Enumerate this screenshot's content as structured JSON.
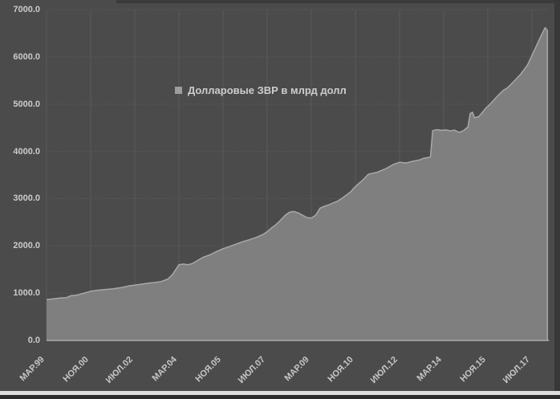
{
  "colors": {
    "background": "#4b4b4b",
    "area_fill": "#7f7f7f",
    "area_edge": "#a8a8a8",
    "gridline_h": "#5f5f5f",
    "gridline_v": "#595959",
    "axis_baseline": "#9b9b9b",
    "tick_text": "#cbcbcb",
    "legend_marker": "#9d9d9d",
    "scan_border": "#383838"
  },
  "chart_data": {
    "type": "area",
    "title": "",
    "xlabel": "",
    "ylabel": "",
    "legend_label": "Долларовые ЗВР в млрд долл",
    "legend_position": "upper-center",
    "grid": true,
    "ylim": [
      0,
      7000
    ],
    "y_tick_interval": 1000,
    "x_unit": "months since Mar-1999",
    "y_ticks": [
      {
        "v": 0,
        "label": "0.0"
      },
      {
        "v": 1000,
        "label": "1000.0"
      },
      {
        "v": 2000,
        "label": "2000.0"
      },
      {
        "v": 3000,
        "label": "3000.0"
      },
      {
        "v": 4000,
        "label": "4000.0"
      },
      {
        "v": 5000,
        "label": "5000.0"
      },
      {
        "v": 6000,
        "label": "6000.0"
      },
      {
        "v": 7000,
        "label": "7000.0"
      }
    ],
    "x_ticks": [
      {
        "m": 0,
        "label": "МАР.99"
      },
      {
        "m": 20,
        "label": "НОЯ.00"
      },
      {
        "m": 40,
        "label": "ИЮЛ.02"
      },
      {
        "m": 60,
        "label": "МАР.04"
      },
      {
        "m": 80,
        "label": "НОЯ.05"
      },
      {
        "m": 100,
        "label": "ИЮЛ.07"
      },
      {
        "m": 120,
        "label": "МАР.09"
      },
      {
        "m": 140,
        "label": "НОЯ.10"
      },
      {
        "m": 160,
        "label": "ИЮЛ.12"
      },
      {
        "m": 180,
        "label": "МАР.14"
      },
      {
        "m": 200,
        "label": "НОЯ.15"
      },
      {
        "m": 220,
        "label": "ИЮЛ.17"
      }
    ],
    "series": [
      {
        "name": "Долларовые ЗВР в млрд долл",
        "points": [
          [
            0,
            865
          ],
          [
            3,
            880
          ],
          [
            6,
            895
          ],
          [
            9,
            905
          ],
          [
            11,
            945
          ],
          [
            14,
            960
          ],
          [
            17,
            1000
          ],
          [
            20,
            1040
          ],
          [
            23,
            1060
          ],
          [
            26,
            1075
          ],
          [
            30,
            1090
          ],
          [
            34,
            1120
          ],
          [
            37,
            1150
          ],
          [
            40,
            1170
          ],
          [
            43,
            1190
          ],
          [
            46,
            1210
          ],
          [
            49,
            1225
          ],
          [
            52,
            1245
          ],
          [
            55,
            1300
          ],
          [
            57,
            1390
          ],
          [
            59,
            1530
          ],
          [
            60,
            1600
          ],
          [
            62,
            1615
          ],
          [
            64,
            1600
          ],
          [
            66,
            1625
          ],
          [
            68,
            1680
          ],
          [
            71,
            1760
          ],
          [
            74,
            1810
          ],
          [
            77,
            1880
          ],
          [
            80,
            1940
          ],
          [
            83,
            1990
          ],
          [
            86,
            2040
          ],
          [
            89,
            2090
          ],
          [
            92,
            2130
          ],
          [
            95,
            2180
          ],
          [
            98,
            2240
          ],
          [
            100,
            2300
          ],
          [
            102,
            2380
          ],
          [
            104,
            2450
          ],
          [
            106,
            2540
          ],
          [
            108,
            2640
          ],
          [
            110,
            2710
          ],
          [
            112,
            2730
          ],
          [
            114,
            2700
          ],
          [
            116,
            2650
          ],
          [
            118,
            2600
          ],
          [
            120,
            2590
          ],
          [
            122,
            2650
          ],
          [
            124,
            2800
          ],
          [
            126,
            2840
          ],
          [
            128,
            2870
          ],
          [
            130,
            2910
          ],
          [
            132,
            2950
          ],
          [
            134,
            3010
          ],
          [
            136,
            3080
          ],
          [
            138,
            3150
          ],
          [
            139,
            3210
          ],
          [
            141,
            3300
          ],
          [
            143,
            3380
          ],
          [
            146,
            3520
          ],
          [
            150,
            3560
          ],
          [
            154,
            3640
          ],
          [
            157,
            3720
          ],
          [
            160,
            3770
          ],
          [
            163,
            3755
          ],
          [
            166,
            3790
          ],
          [
            169,
            3820
          ],
          [
            171,
            3855
          ],
          [
            174,
            3880
          ],
          [
            175,
            4440
          ],
          [
            177,
            4460
          ],
          [
            179,
            4445
          ],
          [
            181,
            4455
          ],
          [
            183,
            4435
          ],
          [
            185,
            4450
          ],
          [
            187,
            4400
          ],
          [
            189,
            4440
          ],
          [
            191,
            4520
          ],
          [
            192,
            4800
          ],
          [
            193,
            4830
          ],
          [
            194,
            4710
          ],
          [
            196,
            4740
          ],
          [
            198,
            4850
          ],
          [
            199,
            4910
          ],
          [
            201,
            5000
          ],
          [
            203,
            5100
          ],
          [
            205,
            5200
          ],
          [
            207,
            5290
          ],
          [
            209,
            5350
          ],
          [
            212,
            5490
          ],
          [
            215,
            5640
          ],
          [
            218,
            5830
          ],
          [
            220,
            6030
          ],
          [
            222,
            6230
          ],
          [
            224,
            6430
          ],
          [
            226,
            6620
          ],
          [
            227,
            6560
          ]
        ]
      }
    ]
  }
}
